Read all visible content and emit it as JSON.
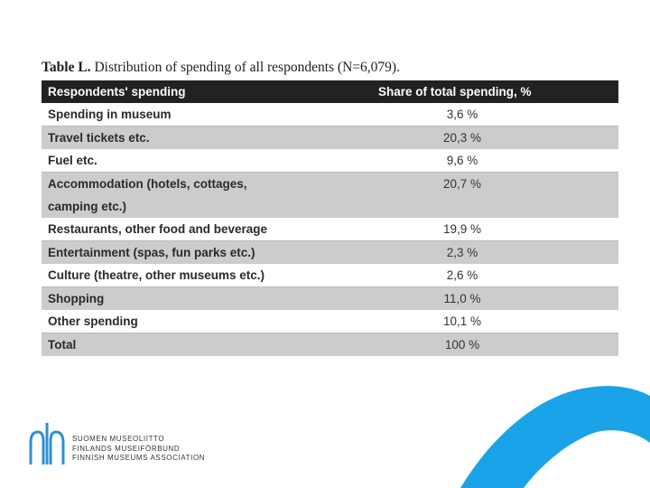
{
  "caption": {
    "label": "Table L.",
    "text": "Distribution of spending of all respondents (N=6,079)."
  },
  "table": {
    "headers": [
      "Respondents' spending",
      "Share of total spending, %"
    ],
    "rows": [
      {
        "label": "Spending in museum",
        "value": "3,6 %"
      },
      {
        "label": "Travel tickets etc.",
        "value": "20,3 %"
      },
      {
        "label": "Fuel etc.",
        "value": "9,6 %"
      },
      {
        "label": "Accommodation (hotels, cottages,",
        "label2": "camping etc.)",
        "value": "20,7 %"
      },
      {
        "label": "Restaurants, other food and beverage",
        "value": "19,9 %"
      },
      {
        "label": "Entertainment (spas, fun parks etc.)",
        "value": "2,3 %"
      },
      {
        "label": "Culture (theatre, other museums etc.)",
        "value": "2,6 %"
      },
      {
        "label": "Shopping",
        "value": "11,0 %"
      },
      {
        "label": "Other spending",
        "value": "10,1 %"
      },
      {
        "label": "Total",
        "value": "100 %"
      }
    ]
  },
  "logo": {
    "lines": [
      "SUOMEN MUSEOLIITTO",
      "FINLANDS MUSEIFÖRBUND",
      "FINNISH MUSEUMS ASSOCIATION"
    ]
  },
  "colors": {
    "header_bg": "#222222",
    "stripe": "#cccccc",
    "accent": "#1aa3e8"
  }
}
